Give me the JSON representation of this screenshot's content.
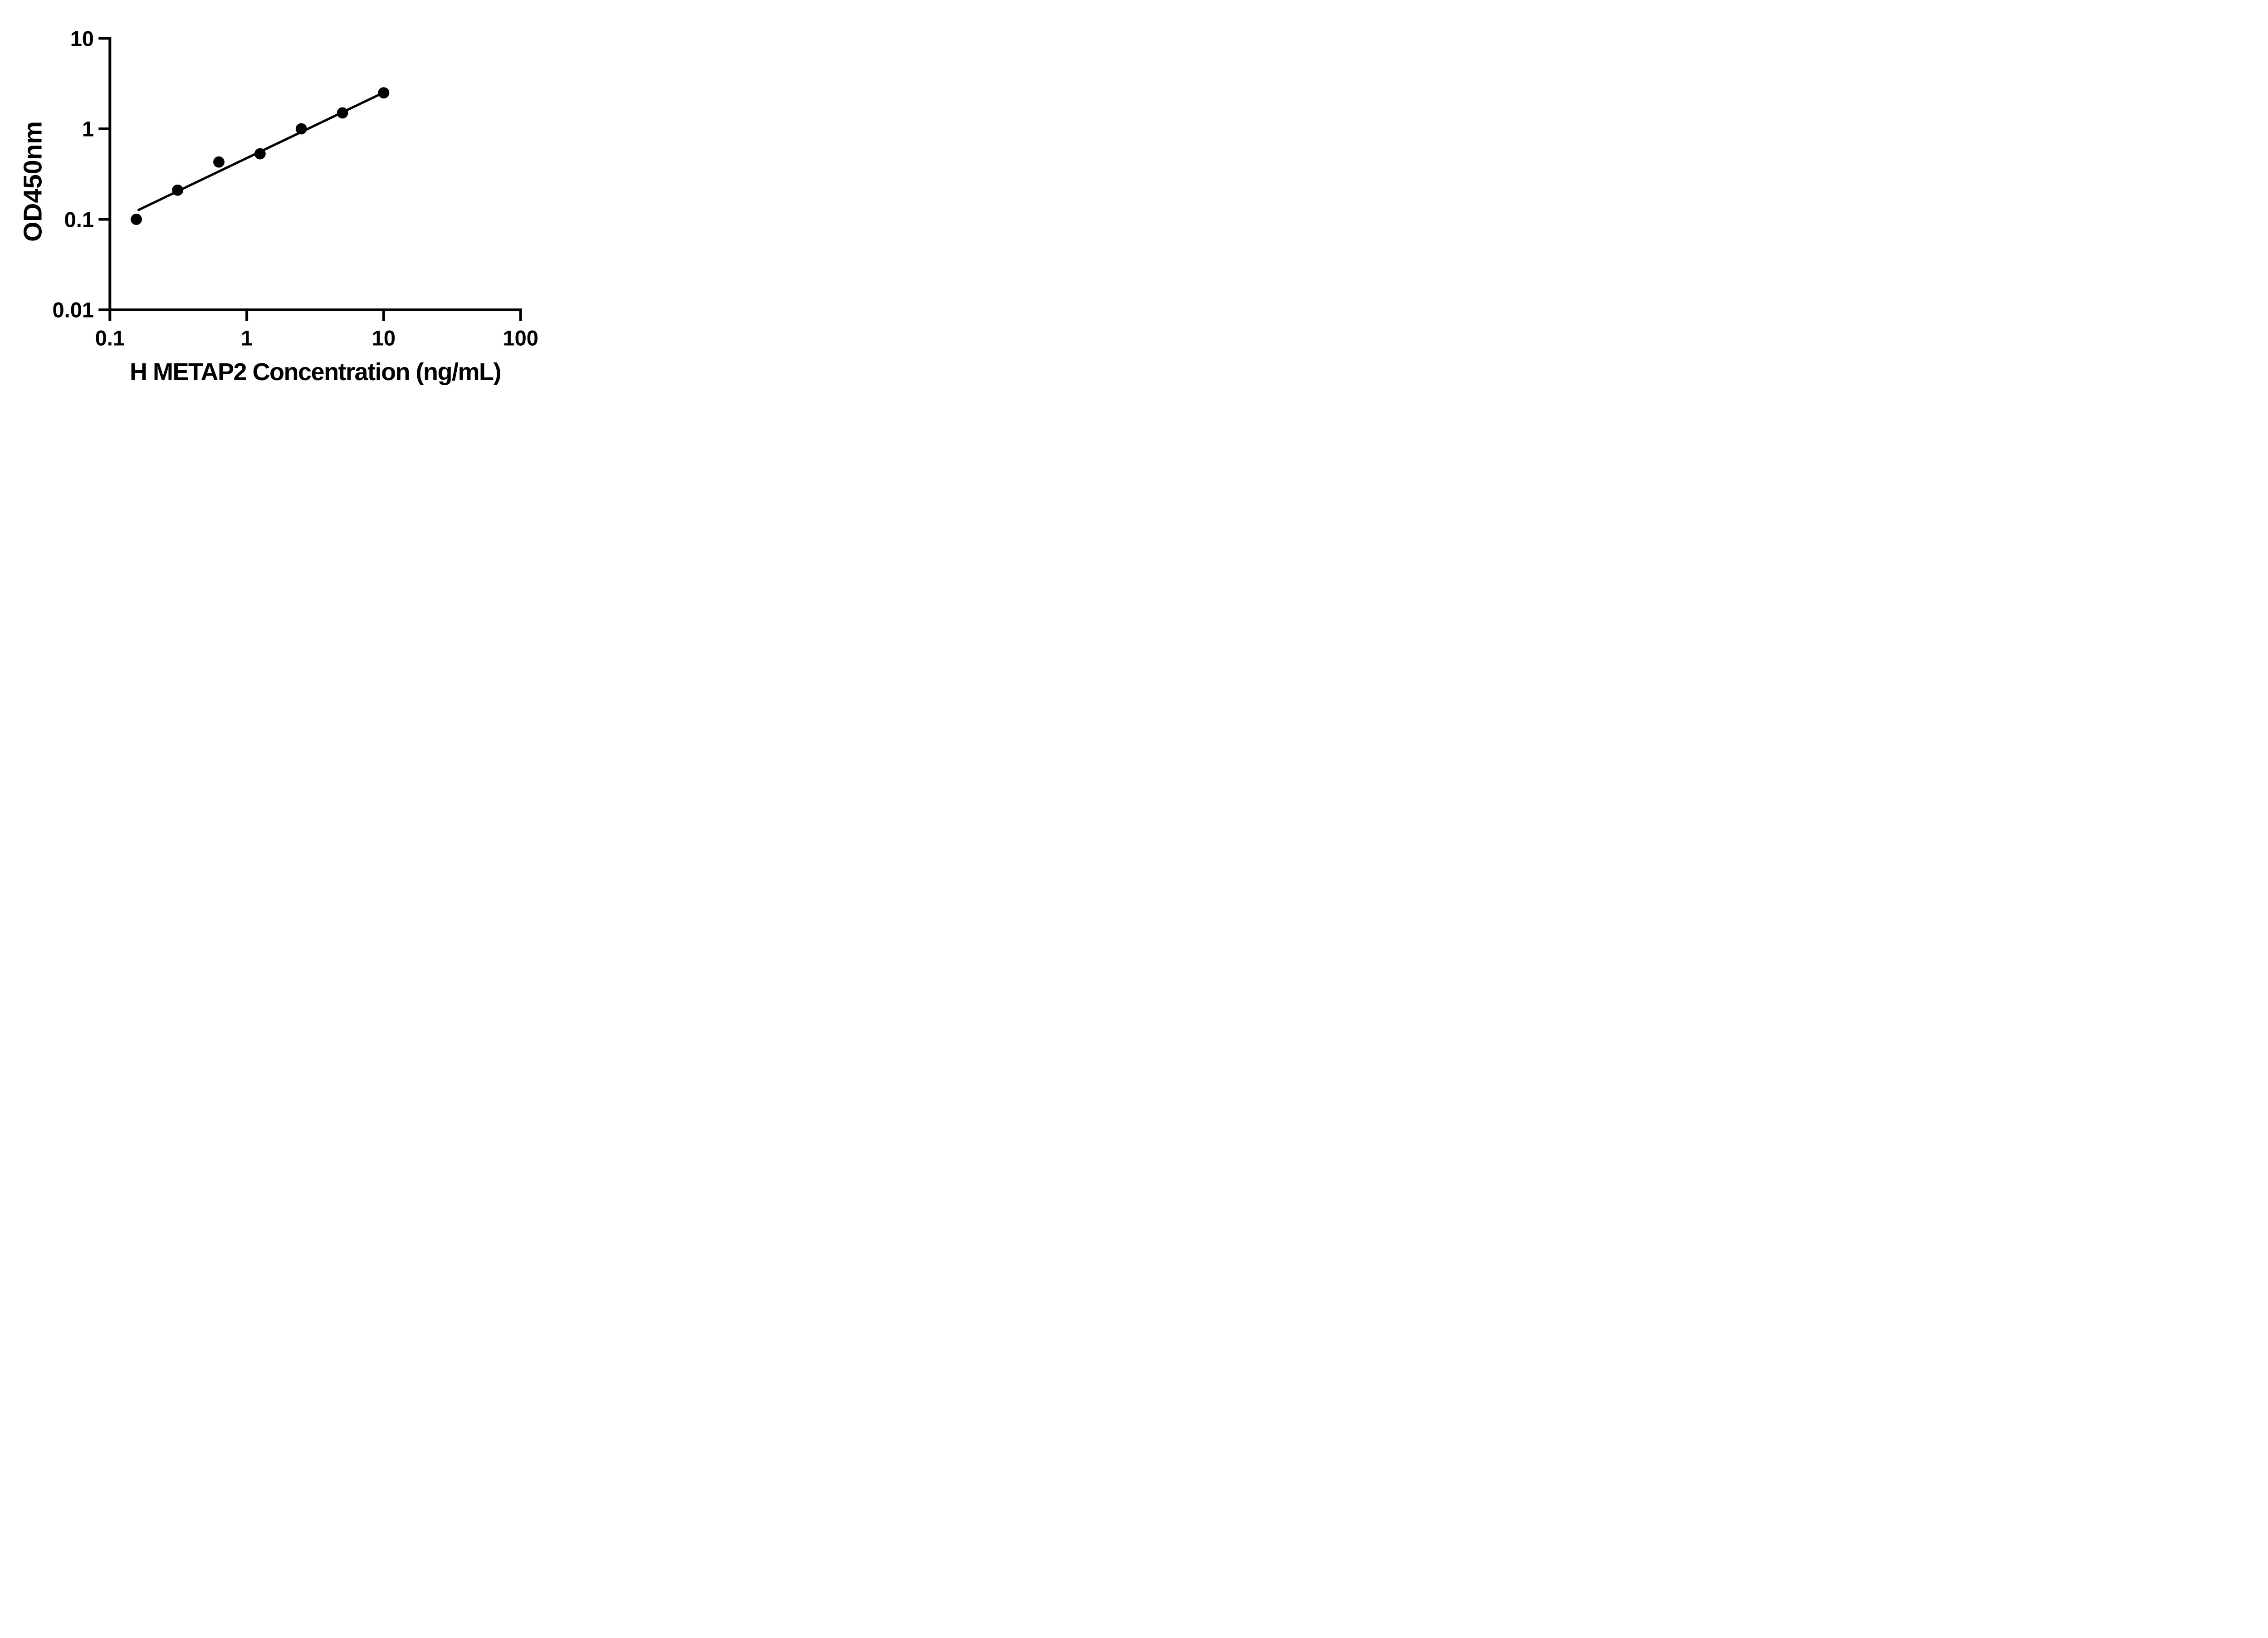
{
  "colors": {
    "foreground": "#000000",
    "background": "#ffffff"
  },
  "chart_data": {
    "type": "scatter",
    "title": "",
    "xlabel": "H METAP2 Concentration (ng/mL)",
    "ylabel": "OD450nm",
    "x_scale": "log",
    "y_scale": "log",
    "xlim": [
      0.1,
      100
    ],
    "ylim": [
      0.01,
      10
    ],
    "x_ticks": [
      0.1,
      1,
      10,
      100
    ],
    "x_tick_labels": [
      "0.1",
      "1",
      "10",
      "100"
    ],
    "y_ticks": [
      10,
      1,
      0.1,
      0.01
    ],
    "y_tick_labels": [
      "10",
      "1",
      "0.1",
      "0.01"
    ],
    "grid": false,
    "legend_position": "none",
    "series": [
      {
        "name": "standard-curve-points",
        "type": "scatter",
        "marker": "circle",
        "color": "#000000",
        "points": [
          {
            "x": 0.156,
            "y": 0.1
          },
          {
            "x": 0.3125,
            "y": 0.21
          },
          {
            "x": 0.625,
            "y": 0.43
          },
          {
            "x": 1.25,
            "y": 0.53
          },
          {
            "x": 2.5,
            "y": 1.0
          },
          {
            "x": 5,
            "y": 1.5
          },
          {
            "x": 10,
            "y": 2.5
          }
        ]
      },
      {
        "name": "fit-line",
        "type": "line",
        "color": "#000000",
        "points": [
          {
            "x": 0.162,
            "y": 0.127
          },
          {
            "x": 10,
            "y": 2.52
          }
        ]
      }
    ]
  }
}
